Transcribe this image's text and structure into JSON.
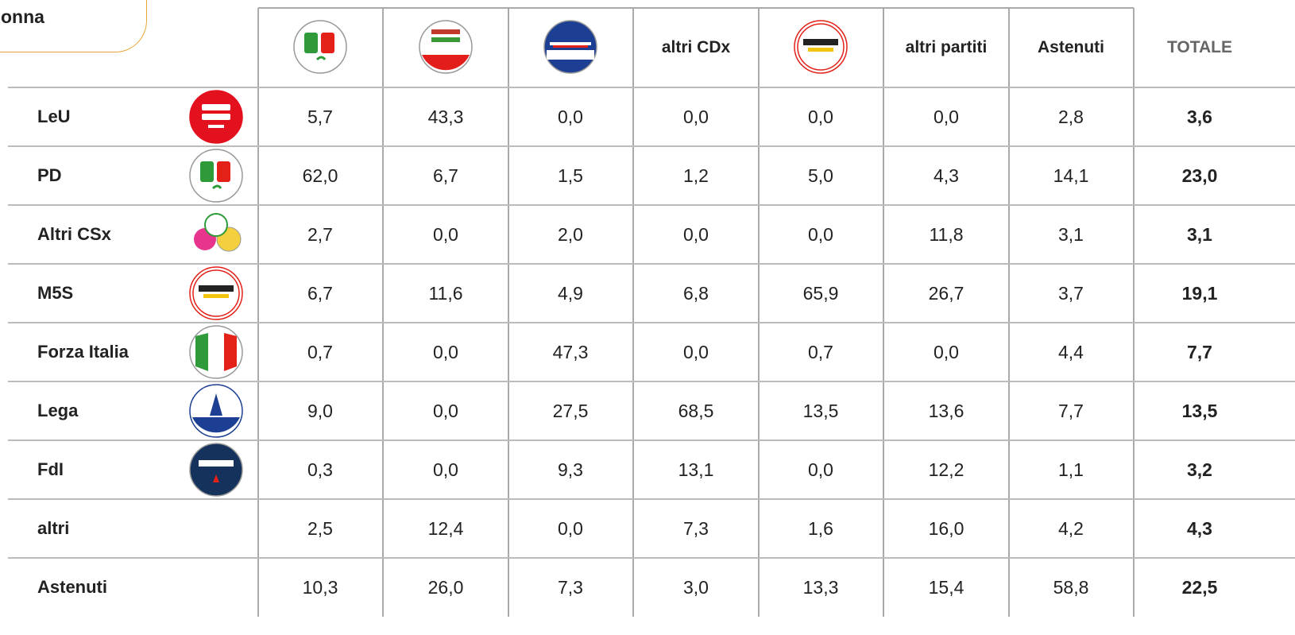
{
  "badge": "onna",
  "header_labels": [
    "altri CDx",
    "altri partiti",
    "Astenuti",
    "TOTALE"
  ],
  "rows": [
    {
      "label": "LeU",
      "values": [
        "5,7",
        "43,3",
        "0,0",
        "0,0",
        "0,0",
        "0,0",
        "2,8",
        "3,6"
      ]
    },
    {
      "label": "PD",
      "values": [
        "62,0",
        "6,7",
        "1,5",
        "1,2",
        "5,0",
        "4,3",
        "14,1",
        "23,0"
      ]
    },
    {
      "label": "Altri CSx",
      "values": [
        "2,7",
        "0,0",
        "2,0",
        "0,0",
        "0,0",
        "11,8",
        "3,1",
        "3,1"
      ]
    },
    {
      "label": "M5S",
      "values": [
        "6,7",
        "11,6",
        "4,9",
        "6,8",
        "65,9",
        "26,7",
        "3,7",
        "19,1"
      ]
    },
    {
      "label": "Forza Italia",
      "values": [
        "0,7",
        "0,0",
        "47,3",
        "0,0",
        "0,7",
        "0,0",
        "4,4",
        "7,7"
      ]
    },
    {
      "label": "Lega",
      "values": [
        "9,0",
        "0,0",
        "27,5",
        "68,5",
        "13,5",
        "13,6",
        "7,7",
        "13,5"
      ]
    },
    {
      "label": "FdI",
      "values": [
        "0,3",
        "0,0",
        "9,3",
        "13,1",
        "0,0",
        "12,2",
        "1,1",
        "3,2"
      ]
    },
    {
      "label": "altri",
      "values": [
        "2,5",
        "12,4",
        "0,0",
        "7,3",
        "1,6",
        "16,0",
        "4,2",
        "4,3"
      ]
    },
    {
      "label": "Astenuti",
      "values": [
        "10,3",
        "26,0",
        "7,3",
        "3,0",
        "13,3",
        "15,4",
        "58,8",
        "22,5"
      ]
    }
  ]
}
